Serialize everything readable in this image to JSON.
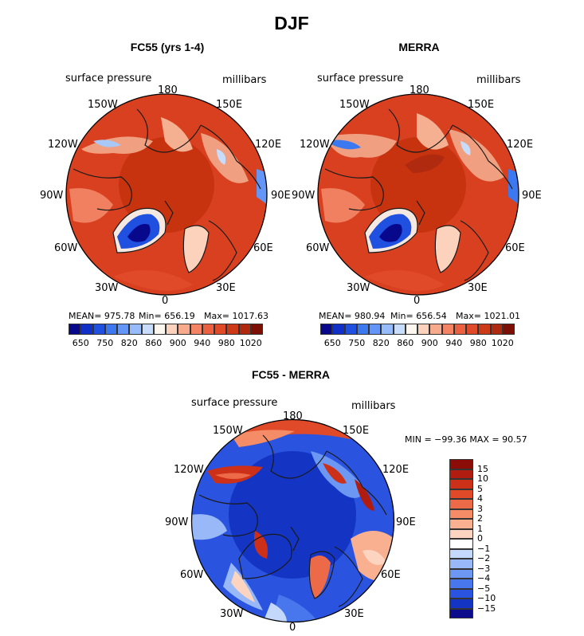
{
  "figure": {
    "title": "DJF"
  },
  "panels": [
    {
      "title": "FC55 (yrs 1-4)",
      "variable": "surface pressure",
      "units": "millibars",
      "lon_labels": {
        "top": "180",
        "bottom": "0",
        "l1": "150W",
        "l2": "120W",
        "l3": "90W",
        "l4": "60W",
        "l5": "30W",
        "r1": "150E",
        "r2": "120E",
        "r3": "90E",
        "r4": "60E",
        "r5": "30E"
      },
      "stats": {
        "mean": "MEAN= 975.78",
        "min": "Min= 656.19",
        "max": "Max= 1017.63"
      },
      "colorbar_labels": [
        "650",
        "750",
        "820",
        "860",
        "900",
        "940",
        "980",
        "1020"
      ]
    },
    {
      "title": "MERRA",
      "variable": "surface pressure",
      "units": "millibars",
      "lon_labels": {
        "top": "180",
        "bottom": "0",
        "l1": "150W",
        "l2": "120W",
        "l3": "90W",
        "l4": "60W",
        "l5": "30W",
        "r1": "150E",
        "r2": "120E",
        "r3": "90E",
        "r4": "60E",
        "r5": "30E"
      },
      "stats": {
        "mean": "MEAN= 980.94",
        "min": "Min= 656.54",
        "max": "Max= 1021.01"
      },
      "colorbar_labels": [
        "650",
        "750",
        "820",
        "860",
        "900",
        "940",
        "980",
        "1020"
      ]
    },
    {
      "title": "FC55 - MERRA",
      "variable": "surface pressure",
      "units": "millibars",
      "lon_labels": {
        "top": "180",
        "bottom": "0",
        "l1": "150W",
        "l2": "120W",
        "l3": "90W",
        "l4": "60W",
        "l5": "30W",
        "r1": "150E",
        "r2": "120E",
        "r3": "90E",
        "r4": "60E",
        "r5": "30E"
      },
      "stats": {
        "minmax": "MIN = −99.36 MAX =   90.57"
      },
      "colorbar_labels": [
        "15",
        "10",
        "5",
        "4",
        "3",
        "2",
        "1",
        "0",
        "−1",
        "−2",
        "−3",
        "−4",
        "−5",
        "−10",
        "−15"
      ]
    }
  ],
  "colors": {
    "abs_scale": [
      "#08088c",
      "#1030c8",
      "#2050e0",
      "#3c78f0",
      "#6496f8",
      "#96bcfc",
      "#c8dcfc",
      "#fcf8f0",
      "#fcd2bc",
      "#f8aa8c",
      "#f48464",
      "#ec6040",
      "#e04a28",
      "#cc3a18",
      "#b02a10",
      "#7c1004"
    ],
    "diff_scale": [
      "#8c0c08",
      "#b01c10",
      "#cc3018",
      "#e04a28",
      "#ec6a48",
      "#f48c68",
      "#f8b090",
      "#fcd4c0",
      "#ffffff",
      "#c4d8fc",
      "#98b8f8",
      "#6c98f4",
      "#4876ec",
      "#2a54e0",
      "#1434c4",
      "#0c0c8c"
    ]
  }
}
